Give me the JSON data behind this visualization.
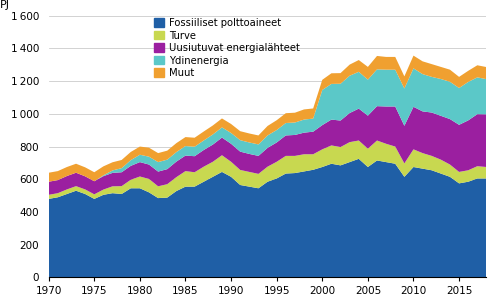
{
  "years": [
    1970,
    1971,
    1972,
    1973,
    1974,
    1975,
    1976,
    1977,
    1978,
    1979,
    1980,
    1981,
    1982,
    1983,
    1984,
    1985,
    1986,
    1987,
    1988,
    1989,
    1990,
    1991,
    1992,
    1993,
    1994,
    1995,
    1996,
    1997,
    1998,
    1999,
    2000,
    2001,
    2002,
    2003,
    2004,
    2005,
    2006,
    2007,
    2008,
    2009,
    2010,
    2011,
    2012,
    2013,
    2014,
    2015,
    2016,
    2017,
    2018
  ],
  "fossil": [
    480,
    490,
    510,
    530,
    510,
    480,
    505,
    515,
    510,
    545,
    545,
    520,
    485,
    488,
    528,
    555,
    555,
    585,
    615,
    645,
    615,
    565,
    555,
    545,
    585,
    605,
    635,
    638,
    648,
    658,
    675,
    695,
    685,
    705,
    725,
    675,
    715,
    705,
    695,
    615,
    675,
    665,
    655,
    635,
    615,
    575,
    585,
    605,
    605
  ],
  "turve": [
    25,
    25,
    28,
    28,
    28,
    28,
    32,
    42,
    48,
    52,
    72,
    82,
    72,
    82,
    85,
    95,
    88,
    92,
    92,
    102,
    92,
    92,
    90,
    88,
    92,
    102,
    108,
    105,
    105,
    95,
    108,
    112,
    112,
    122,
    112,
    112,
    122,
    112,
    105,
    82,
    108,
    95,
    88,
    85,
    75,
    70,
    70,
    75,
    70
  ],
  "uusiutuvat": [
    80,
    80,
    82,
    82,
    80,
    80,
    82,
    82,
    85,
    85,
    88,
    88,
    90,
    92,
    95,
    95,
    98,
    102,
    105,
    108,
    110,
    112,
    110,
    110,
    115,
    118,
    125,
    128,
    132,
    138,
    148,
    158,
    162,
    178,
    195,
    202,
    210,
    228,
    245,
    230,
    260,
    255,
    265,
    268,
    278,
    288,
    305,
    318,
    322
  ],
  "ydinenergia": [
    0,
    0,
    0,
    0,
    0,
    0,
    5,
    15,
    25,
    35,
    45,
    48,
    58,
    58,
    58,
    58,
    58,
    58,
    62,
    62,
    66,
    70,
    70,
    70,
    76,
    76,
    76,
    76,
    80,
    80,
    215,
    218,
    225,
    228,
    225,
    220,
    225,
    225,
    225,
    228,
    235,
    228,
    218,
    225,
    228,
    225,
    235,
    225,
    215
  ],
  "muut": [
    55,
    55,
    55,
    55,
    55,
    55,
    55,
    50,
    50,
    50,
    50,
    55,
    55,
    55,
    55,
    55,
    55,
    55,
    55,
    55,
    55,
    55,
    55,
    55,
    58,
    60,
    60,
    60,
    62,
    62,
    62,
    65,
    65,
    68,
    72,
    78,
    82,
    78,
    78,
    74,
    78,
    78,
    78,
    74,
    74,
    68,
    68,
    74,
    74
  ],
  "colors": {
    "fossil": "#1f5fa6",
    "turve": "#c8d850",
    "uusiutuvat": "#9b1fa0",
    "ydinenergia": "#5bc8c8",
    "muut": "#f0a030"
  },
  "legend_labels": [
    "Fossiiliset polttoaineet",
    "Turve",
    "Uusiutuvat energialähteet",
    "Ydinenergia",
    "Muut"
  ],
  "ylabel": "PJ",
  "ylim": [
    0,
    1600
  ],
  "yticks": [
    0,
    200,
    400,
    600,
    800,
    1000,
    1200,
    1400,
    1600
  ],
  "xticks": [
    1970,
    1975,
    1980,
    1985,
    1990,
    1995,
    2000,
    2005,
    2010,
    2015
  ]
}
